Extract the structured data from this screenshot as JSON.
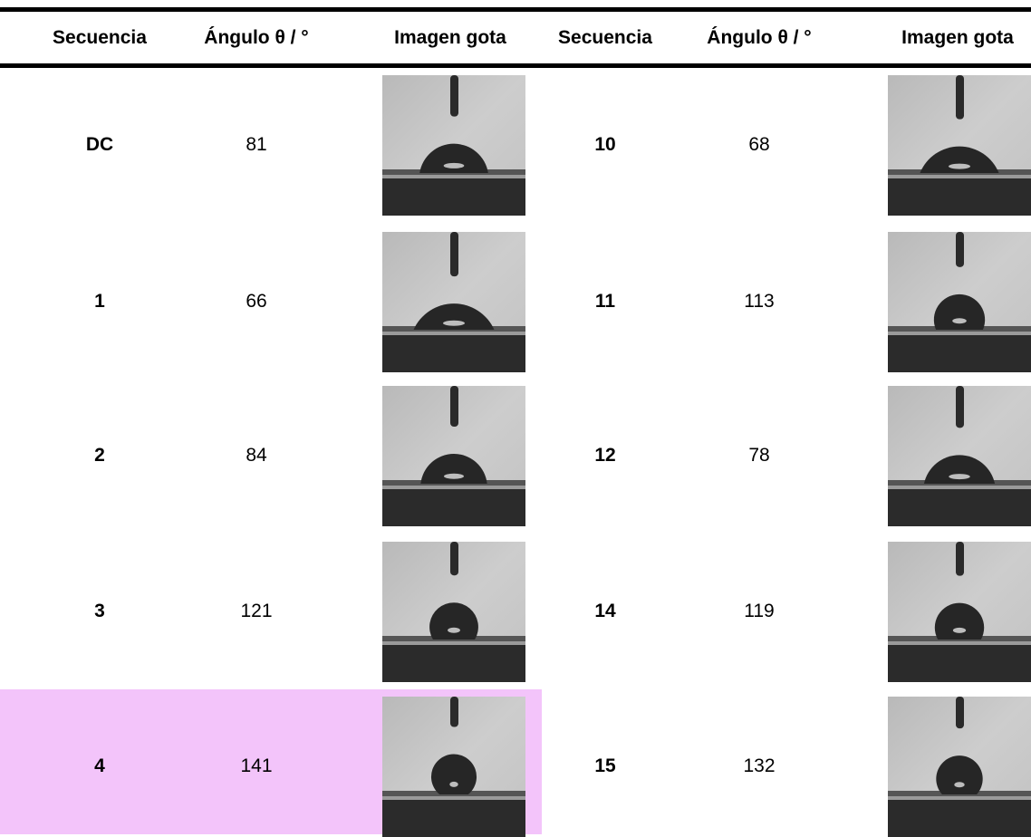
{
  "table": {
    "headers": [
      "Secuencia",
      "Ángulo θ / °",
      "Imagen gota",
      "Secuencia",
      "Ángulo θ / °",
      "Imagen gota"
    ],
    "rows": [
      [
        "DC",
        "81",
        "10",
        "68"
      ],
      [
        "1",
        "66",
        "11",
        "113"
      ],
      [
        "2",
        "84",
        "12",
        "78"
      ],
      [
        "3",
        "121",
        "14",
        "119"
      ],
      [
        "4",
        "141",
        "15",
        "132"
      ]
    ]
  }
}
